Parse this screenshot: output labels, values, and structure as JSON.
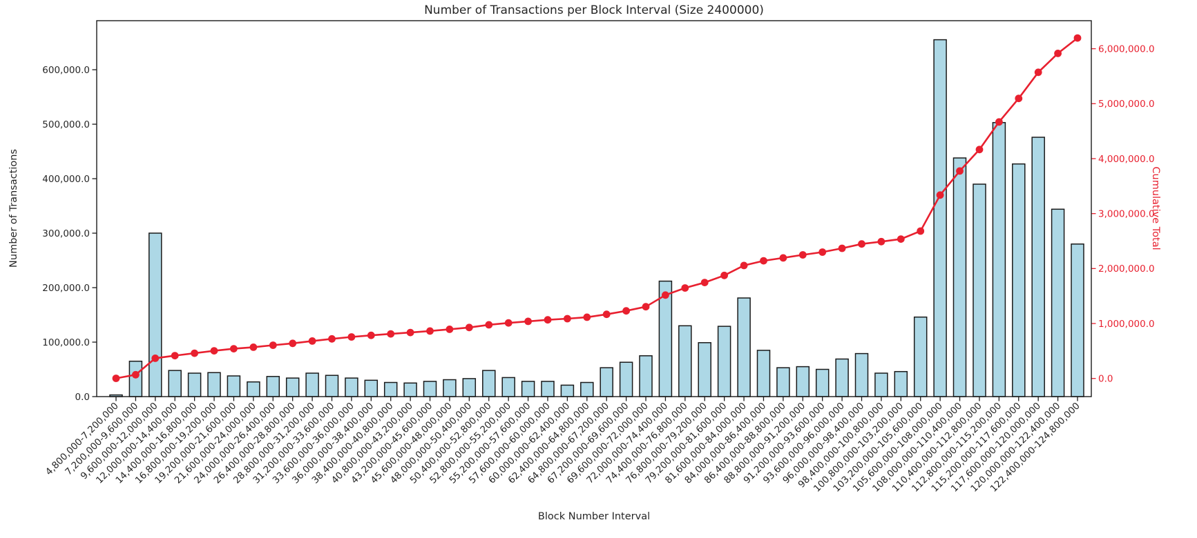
{
  "chart_data": {
    "type": "bar+line",
    "title": "Number of Transactions per Block Interval (Size 2400000)",
    "xlabel": "Block Number Interval",
    "ylabel_left": "Number of Transactions",
    "ylabel_right": "Cumulative Total",
    "grid": false,
    "legend": null,
    "categories": [
      "4,800,000-7,200,000",
      "7,200,000-9,600,000",
      "9,600,000-12,000,000",
      "12,000,000-14,400,000",
      "14,400,000-16,800,000",
      "16,800,000-19,200,000",
      "19,200,000-21,600,000",
      "21,600,000-24,000,000",
      "24,000,000-26,400,000",
      "26,400,000-28,800,000",
      "28,800,000-31,200,000",
      "31,200,000-33,600,000",
      "33,600,000-36,000,000",
      "36,000,000-38,400,000",
      "38,400,000-40,800,000",
      "40,800,000-43,200,000",
      "43,200,000-45,600,000",
      "45,600,000-48,000,000",
      "48,000,000-50,400,000",
      "50,400,000-52,800,000",
      "52,800,000-55,200,000",
      "55,200,000-57,600,000",
      "57,600,000-60,000,000",
      "60,000,000-62,400,000",
      "62,400,000-64,800,000",
      "64,800,000-67,200,000",
      "67,200,000-69,600,000",
      "69,600,000-72,000,000",
      "72,000,000-74,400,000",
      "74,400,000-76,800,000",
      "76,800,000-79,200,000",
      "79,200,000-81,600,000",
      "81,600,000-84,000,000",
      "84,000,000-86,400,000",
      "86,400,000-88,800,000",
      "88,800,000-91,200,000",
      "91,200,000-93,600,000",
      "93,600,000-96,000,000",
      "96,000,000-98,400,000",
      "98,400,000-100,800,000",
      "100,800,000-103,200,000",
      "103,200,000-105,600,000",
      "105,600,000-108,000,000",
      "108,000,000-110,400,000",
      "110,400,000-112,800,000",
      "112,800,000-115,200,000",
      "115,200,000-117,600,000",
      "117,600,000-120,000,000",
      "120,000,000-122,400,000",
      "122,400,000-124,800,000"
    ],
    "series": [
      {
        "name": "Number of Transactions",
        "type": "bar",
        "axis": "left",
        "values": [
          3000,
          65000,
          300000,
          48000,
          43000,
          44000,
          38000,
          27000,
          37000,
          34000,
          43000,
          39000,
          34000,
          30000,
          26000,
          25000,
          28000,
          31000,
          33000,
          48000,
          35000,
          28000,
          28000,
          21000,
          26000,
          53000,
          63000,
          75000,
          212000,
          130000,
          99000,
          129000,
          181000,
          85000,
          53000,
          55000,
          50000,
          69000,
          79000,
          43000,
          46000,
          146000,
          655000,
          438000,
          390000,
          503000,
          427000,
          476000,
          344000,
          280000
        ]
      },
      {
        "name": "Cumulative Total",
        "type": "line",
        "axis": "right",
        "values": [
          3000,
          68000,
          368000,
          416000,
          459000,
          503000,
          541000,
          568000,
          605000,
          639000,
          682000,
          721000,
          755000,
          785000,
          811000,
          836000,
          864000,
          895000,
          928000,
          976000,
          1011000,
          1039000,
          1067000,
          1088000,
          1114000,
          1167000,
          1230000,
          1305000,
          1517000,
          1647000,
          1746000,
          1875000,
          2056000,
          2141000,
          2194000,
          2249000,
          2299000,
          2368000,
          2447000,
          2490000,
          2536000,
          2682000,
          3337000,
          3775000,
          4165000,
          4668000,
          5095000,
          5571000,
          5915000,
          6195000
        ]
      }
    ],
    "left_axis": {
      "range": [
        0,
        690000
      ],
      "tick_values": [
        0,
        100000,
        200000,
        300000,
        400000,
        500000,
        600000
      ],
      "tick_labels": [
        "0.0",
        "100,000.0",
        "200,000.0",
        "300,000.0",
        "400,000.0",
        "500,000.0",
        "600,000.0"
      ]
    },
    "right_axis": {
      "range": [
        -330000,
        6510000
      ],
      "tick_values": [
        0,
        1000000,
        2000000,
        3000000,
        4000000,
        5000000,
        6000000
      ],
      "tick_labels": [
        "0.0",
        "1,000,000.0",
        "2,000,000.0",
        "3,000,000.0",
        "4,000,000.0",
        "5,000,000.0",
        "6,000,000.0"
      ]
    },
    "colors": {
      "bar_fill": "#ADD8E6",
      "bar_edge": "#1a1a1a",
      "line": "#e8202f",
      "axis_text": "#262626",
      "spine": "#1a1a1a",
      "background": "#ffffff"
    }
  }
}
